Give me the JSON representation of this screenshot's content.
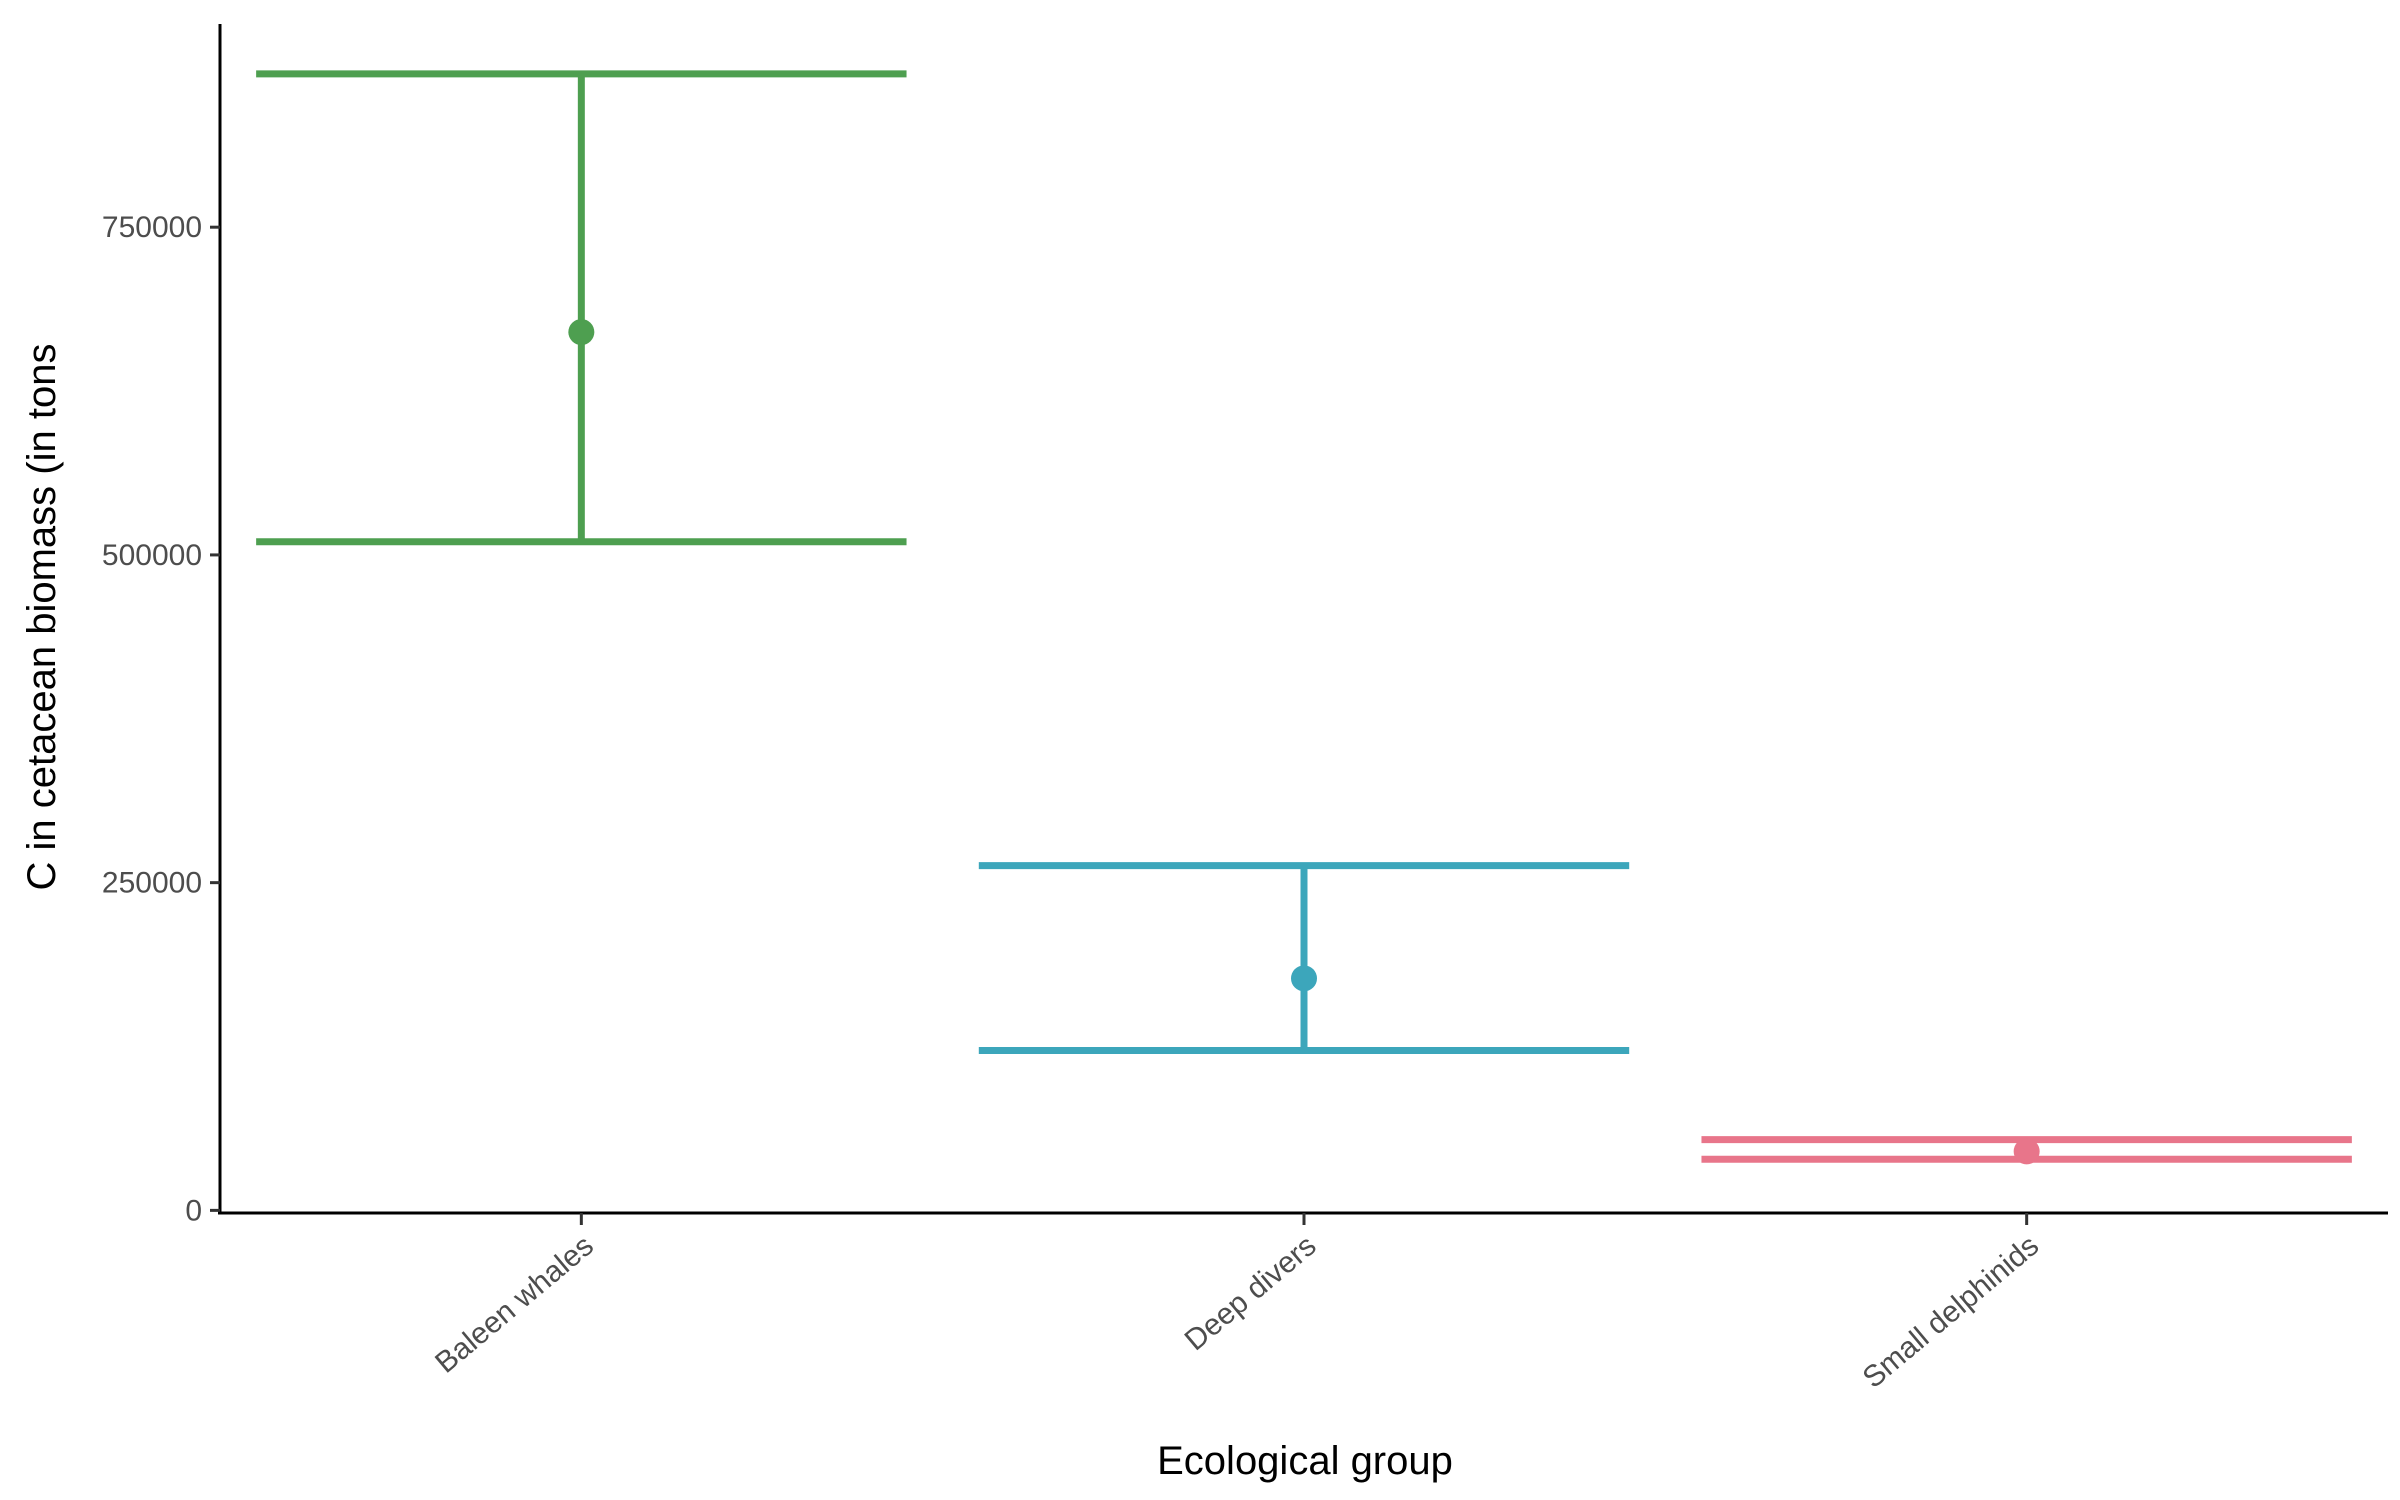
{
  "chart_data": {
    "type": "errorbar",
    "title": "",
    "xlabel": "Ecological group",
    "ylabel": "C in cetacean biomass (in tons",
    "categories": [
      "Baleen whales",
      "Deep divers",
      "Small delphinids"
    ],
    "series": [
      {
        "points": [
          {
            "category": "Baleen whales",
            "value": 670000,
            "lower": 510000,
            "upper": 867000,
            "color": "#4E9F50"
          },
          {
            "category": "Deep divers",
            "value": 177000,
            "lower": 122000,
            "upper": 263000,
            "color": "#3CA6BB"
          },
          {
            "category": "Small delphinids",
            "value": 45000,
            "lower": 39000,
            "upper": 54000,
            "color": "#E8758A"
          }
        ]
      }
    ],
    "yticks": [
      0,
      250000,
      500000,
      750000
    ],
    "yticklabels": [
      "0",
      "250000",
      "500000",
      "750000"
    ],
    "ylim": [
      -2000,
      905000
    ],
    "grid": false,
    "legend": "none"
  }
}
